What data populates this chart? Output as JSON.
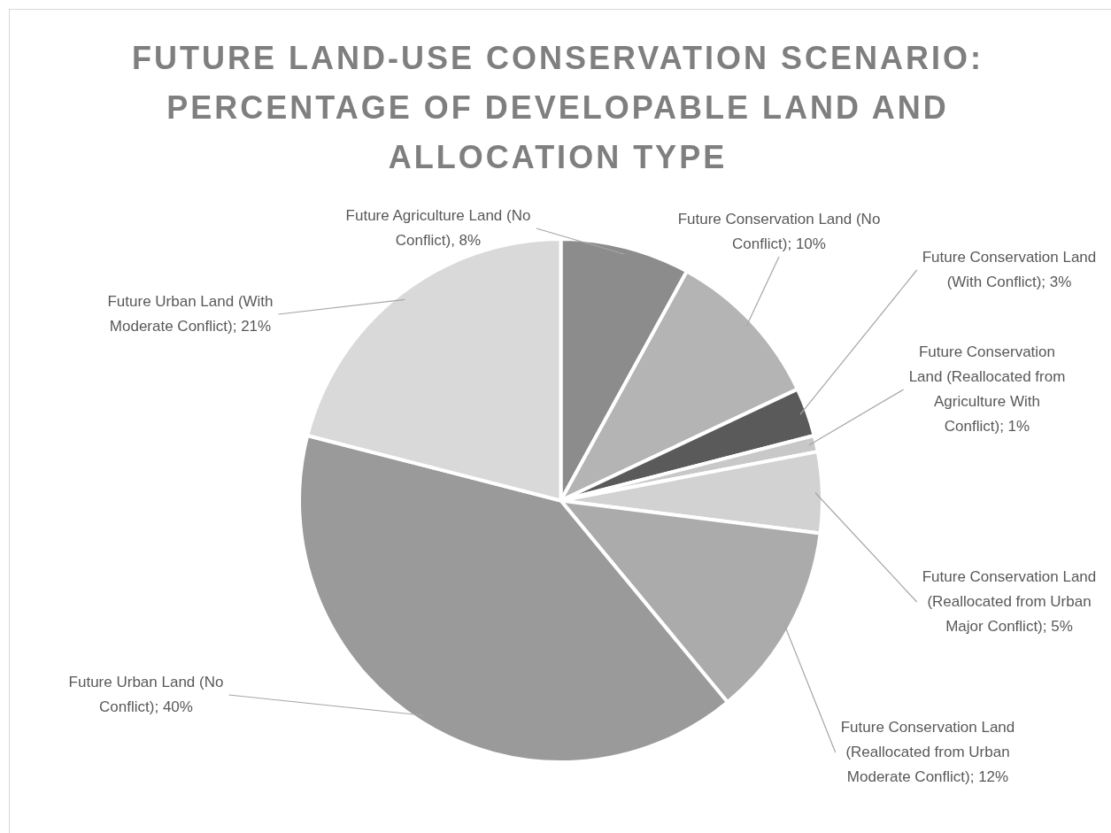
{
  "chart_data": {
    "type": "pie",
    "title": "FUTURE LAND-USE CONSERVATION SCENARIO: PERCENTAGE OF DEVELOPABLE LAND AND ALLOCATION TYPE",
    "categories": [
      "Future Agriculture Land (No Conflict)",
      "Future Conservation Land (No Conflict)",
      "Future Conservation Land (With Conflict)",
      "Future Conservation Land (Reallocated from Agriculture With Conflict)",
      "Future Conservation Land (Reallocated from Urban Major Conflict)",
      "Future Conservation Land (Reallocated from Urban Moderate Conflict)",
      "Future Urban Land (No Conflict)",
      "Future Urban Land (With Moderate Conflict)"
    ],
    "values": [
      8,
      10,
      3,
      1,
      5,
      12,
      40,
      21
    ],
    "value_labels": [
      "8%",
      "10%",
      "3%",
      "1%",
      "5%",
      "12%",
      "40%",
      "21%"
    ],
    "colors": [
      "#8c8c8c",
      "#b4b4b4",
      "#5a5a5a",
      "#c8c8c8",
      "#d2d2d2",
      "#ababab",
      "#9a9a9a",
      "#d9d9d9"
    ],
    "legend": false
  }
}
